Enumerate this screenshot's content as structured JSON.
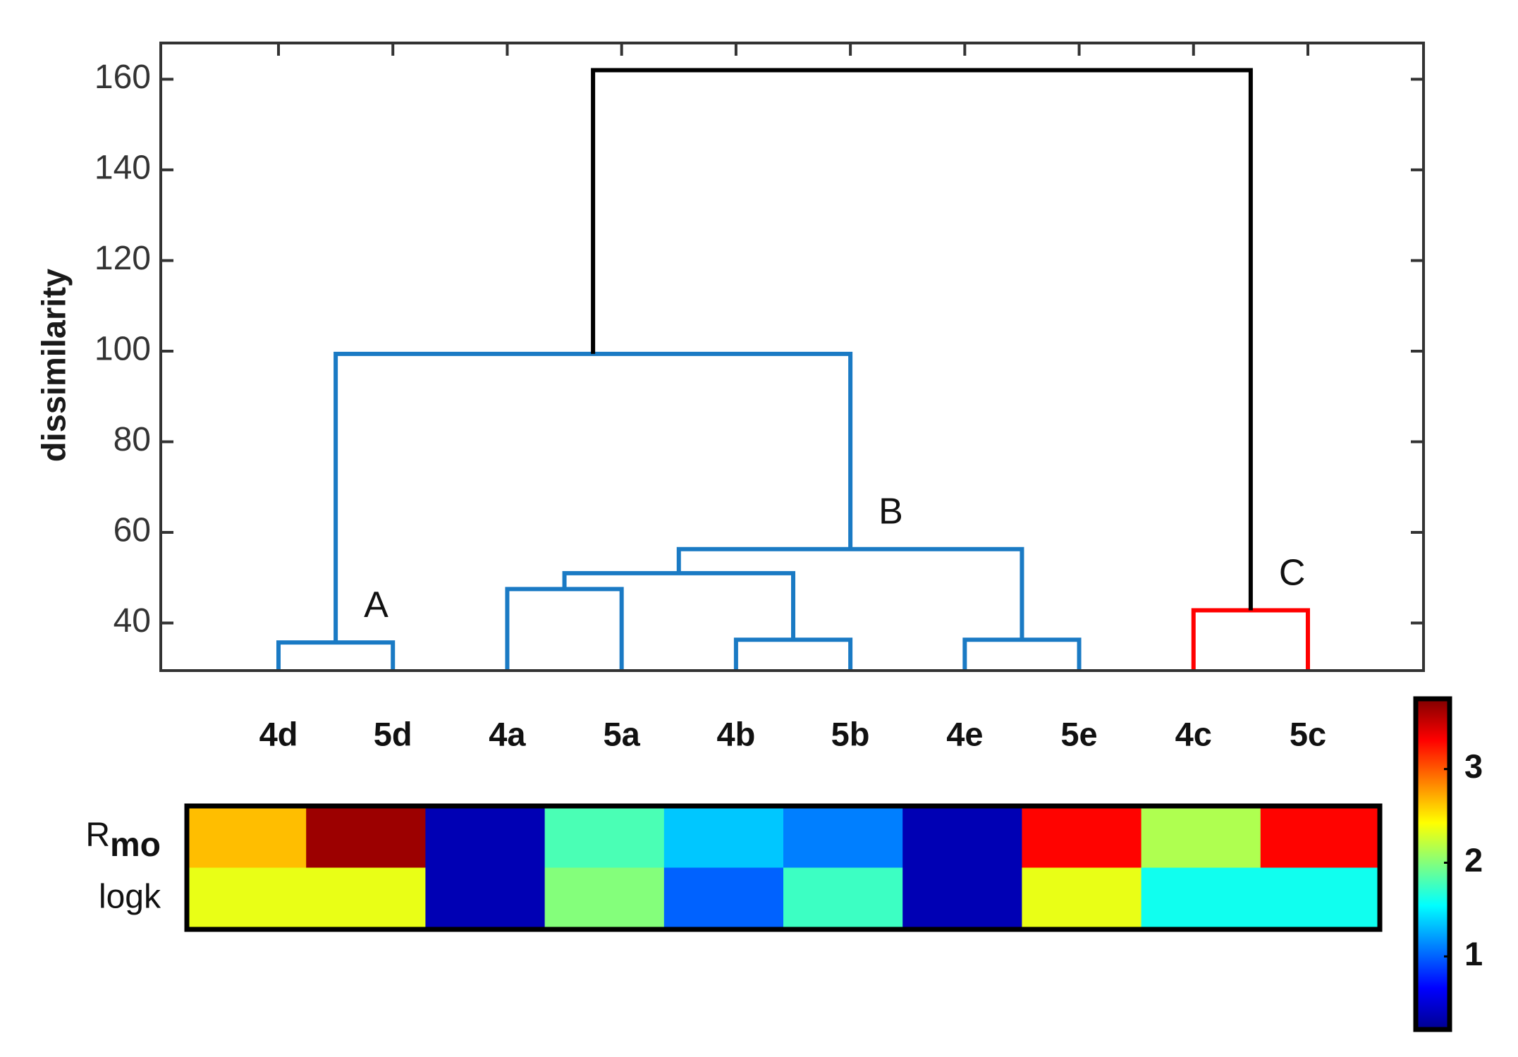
{
  "chart_data": [
    {
      "type": "dendrogram",
      "ylabel": "dissimilarity",
      "ylim": [
        29.5,
        168
      ],
      "yticks": [
        40,
        60,
        80,
        100,
        120,
        140,
        160
      ],
      "leaves": [
        "4d",
        "5d",
        "4a",
        "5a",
        "4b",
        "5b",
        "4e",
        "5e",
        "4c",
        "5c"
      ],
      "links": [
        {
          "left": 0,
          "right": 1,
          "height": 35.7,
          "color": "#1a7ac4",
          "label": "A"
        },
        {
          "left": 2,
          "right": 3,
          "height": 47.5,
          "color": "#1a7ac4"
        },
        {
          "left": 4,
          "right": 5,
          "height": 36.3,
          "color": "#1a7ac4"
        },
        {
          "left": 6,
          "right": 7,
          "height": 36.3,
          "color": "#1a7ac4"
        },
        {
          "left": 11,
          "right": 12,
          "height": 51,
          "color": "#1a7ac4"
        },
        {
          "left": 14,
          "right": 13,
          "height": 56.3,
          "color": "#1a7ac4",
          "label": "B"
        },
        {
          "left": 10,
          "right": 15,
          "height": 99.4,
          "color": "#1a7ac4"
        },
        {
          "left": 8,
          "right": 9,
          "height": 42.8,
          "color": "#ff0000",
          "label": "C"
        },
        {
          "left": 16,
          "right": 17,
          "height": 162,
          "color": "#000000"
        }
      ]
    },
    {
      "type": "heatmap",
      "colormap": "jet",
      "rows": [
        {
          "text": "R",
          "subscript": "mo"
        },
        {
          "text": "logk"
        }
      ],
      "values": [
        [
          2.65,
          3.65,
          0.4,
          1.8,
          1.35,
          1.1,
          0.4,
          3.3,
          2.15,
          3.3
        ],
        [
          2.35,
          2.35,
          0.4,
          2.0,
          1.0,
          1.75,
          0.4,
          2.35,
          1.6,
          1.6
        ]
      ],
      "clim": [
        0.22,
        3.75
      ],
      "cticks": [
        1,
        2,
        3
      ]
    }
  ]
}
